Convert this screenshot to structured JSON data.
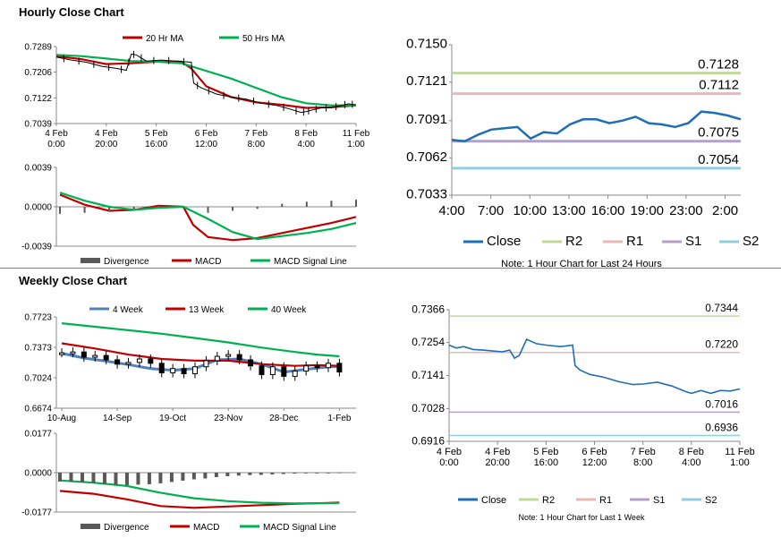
{
  "titles": {
    "hourly": "Hourly Close Chart",
    "weekly": "Weekly Close Chart"
  },
  "colors": {
    "close": "#1f6eb4",
    "r2": "#c4d79b",
    "r1": "#e6b9b8",
    "s1": "#b3a2c7",
    "s2": "#93cddd",
    "ma_short": "#c00000",
    "ma_long": "#00b050",
    "ma_4w": "#4f81bd",
    "divergence": "#595959",
    "price": "#000000",
    "axis": "#888888"
  },
  "chart_data": [
    {
      "id": "hourly-price-ma",
      "type": "line",
      "title": "",
      "legend": [
        "20 Hr MA",
        "50 Hrs MA"
      ],
      "legend_position": "top",
      "x_tick_labels": [
        [
          "4 Feb",
          "0:00"
        ],
        [
          "4 Feb",
          "20:00"
        ],
        [
          "5 Feb",
          "16:00"
        ],
        [
          "6 Feb",
          "12:00"
        ],
        [
          "7 Feb",
          "8:00"
        ],
        [
          "8 Feb",
          "4:00"
        ],
        [
          "11 Feb",
          "1:00"
        ]
      ],
      "y_tick_labels": [
        "0.7289",
        "0.7206",
        "0.7122",
        "0.7039"
      ],
      "ylim": [
        0.7039,
        0.7289
      ],
      "x_range": [
        0,
        6
      ],
      "close_x": [
        0,
        0.3,
        0.6,
        0.9,
        1.2,
        1.4,
        1.5,
        1.6,
        1.8,
        2.1,
        2.4,
        2.7,
        2.75,
        2.9,
        3.2,
        3.5,
        3.8,
        4.1,
        4.4,
        4.7,
        4.9,
        5.0,
        5.1,
        5.3,
        5.5,
        5.7,
        5.85,
        6.0
      ],
      "close_y": [
        0.7255,
        0.7245,
        0.7238,
        0.7225,
        0.7218,
        0.7212,
        0.7265,
        0.7262,
        0.7242,
        0.7245,
        0.7242,
        0.7238,
        0.717,
        0.7155,
        0.7135,
        0.7125,
        0.7118,
        0.7105,
        0.7098,
        0.7085,
        0.7075,
        0.7078,
        0.7082,
        0.709,
        0.709,
        0.7098,
        0.7103,
        0.71
      ],
      "series": [
        {
          "name": "20 Hr MA",
          "x": [
            0,
            0.5,
            1,
            1.5,
            2,
            2.5,
            2.7,
            3,
            3.5,
            4,
            4.5,
            5,
            5.5,
            6
          ],
          "values": [
            0.7258,
            0.7248,
            0.7232,
            0.7235,
            0.724,
            0.724,
            0.7218,
            0.716,
            0.7125,
            0.7108,
            0.71,
            0.709,
            0.7092,
            0.7098
          ]
        },
        {
          "name": "50 Hrs MA",
          "x": [
            0,
            0.5,
            1,
            1.5,
            2,
            2.5,
            3,
            3.5,
            4,
            4.5,
            5,
            5.5,
            6
          ],
          "values": [
            0.7262,
            0.7258,
            0.725,
            0.7242,
            0.724,
            0.7235,
            0.721,
            0.7185,
            0.7155,
            0.7125,
            0.7105,
            0.7098,
            0.7098
          ]
        }
      ]
    },
    {
      "id": "hourly-macd",
      "type": "line",
      "legend": [
        "Divergence",
        "MACD",
        "MACD Signal Line"
      ],
      "legend_position": "bottom",
      "y_tick_labels": [
        "0.0039",
        "0.0000",
        "-0.0039"
      ],
      "ylim": [
        -0.0039,
        0.0039
      ],
      "x_range": [
        0,
        6
      ],
      "series": [
        {
          "name": "MACD",
          "x": [
            0,
            0.5,
            1,
            1.5,
            2,
            2.5,
            2.7,
            3,
            3.5,
            4,
            4.5,
            5,
            5.5,
            6
          ],
          "values": [
            0.0012,
            0.0002,
            -0.0004,
            -0.0003,
            0.0001,
            0.0,
            -0.0018,
            -0.003,
            -0.0033,
            -0.0031,
            -0.0026,
            -0.0021,
            -0.0016,
            -0.001
          ]
        },
        {
          "name": "MACD Signal Line",
          "x": [
            0,
            0.5,
            1,
            1.5,
            2,
            2.5,
            3,
            3.5,
            4,
            4.5,
            5,
            5.5,
            6
          ],
          "values": [
            0.0014,
            0.0006,
            0.0,
            -0.0003,
            -0.0001,
            0.0,
            -0.0012,
            -0.0025,
            -0.0032,
            -0.0029,
            -0.0026,
            -0.0022,
            -0.0016
          ]
        },
        {
          "name": "Divergence",
          "x": [
            0,
            0.5,
            1,
            1.5,
            2,
            2.5,
            3,
            3.5,
            4,
            4.5,
            5,
            5.5,
            6
          ],
          "values": [
            -0.0007,
            -0.0006,
            -0.0005,
            -0.0002,
            0.0001,
            -0.0001,
            -0.0006,
            -0.0004,
            -0.0002,
            0.0003,
            0.0005,
            0.0006,
            0.0007
          ]
        }
      ]
    },
    {
      "id": "hourly-close-levels",
      "type": "line",
      "legend": [
        "Close",
        "R2",
        "R1",
        "S1",
        "S2"
      ],
      "legend_position": "bottom",
      "x_tick_labels": [
        "4:00",
        "7:00",
        "10:00",
        "13:00",
        "16:00",
        "19:00",
        "23:00",
        "2:00"
      ],
      "y_tick_labels": [
        "0.7150",
        "0.7121",
        "0.7091",
        "0.7062",
        "0.7033"
      ],
      "ylim": [
        0.7033,
        0.715
      ],
      "levels": [
        {
          "name": "R2",
          "value": 0.7128,
          "label": "0.7128"
        },
        {
          "name": "R1",
          "value": 0.7112,
          "label": "0.7112"
        },
        {
          "name": "S1",
          "value": 0.7075,
          "label": "0.7075"
        },
        {
          "name": "S2",
          "value": 0.7054,
          "label": "0.7054"
        }
      ],
      "close": [
        0.7076,
        0.7075,
        0.708,
        0.7084,
        0.7085,
        0.7086,
        0.7077,
        0.7082,
        0.7081,
        0.7088,
        0.7092,
        0.7092,
        0.7089,
        0.7091,
        0.7094,
        0.7089,
        0.7088,
        0.7086,
        0.7089,
        0.7098,
        0.7097,
        0.7095,
        0.7092
      ]
    },
    {
      "id": "weekly-price-ma",
      "type": "line",
      "legend": [
        "4 Week",
        "13 Week",
        "40 Week"
      ],
      "legend_position": "top",
      "x_tick_labels": [
        "10-Aug",
        "14-Sep",
        "19-Oct",
        "23-Nov",
        "28-Dec",
        "1-Feb"
      ],
      "y_tick_labels": [
        "0.7723",
        "0.7373",
        "0.7024",
        "0.6674"
      ],
      "ylim": [
        0.6674,
        0.7723
      ],
      "x_range": [
        0,
        26.5
      ],
      "close": [
        0.731,
        0.732,
        0.726,
        0.728,
        0.723,
        0.718,
        0.72,
        0.724,
        0.719,
        0.708,
        0.713,
        0.707,
        0.715,
        0.722,
        0.727,
        0.729,
        0.723,
        0.716,
        0.706,
        0.715,
        0.704,
        0.71,
        0.716,
        0.714,
        0.719,
        0.709
      ],
      "series": [
        {
          "name": "4 Week",
          "x": [
            0,
            2,
            4,
            6,
            8,
            10,
            12,
            14,
            16,
            18,
            20,
            22,
            24,
            25
          ],
          "values": [
            0.7305,
            0.725,
            0.7215,
            0.7175,
            0.713,
            0.711,
            0.713,
            0.723,
            0.724,
            0.718,
            0.709,
            0.712,
            0.715,
            0.7155
          ]
        },
        {
          "name": "13 Week",
          "x": [
            0,
            3,
            6,
            9,
            12,
            15,
            18,
            21,
            23,
            25
          ],
          "values": [
            0.742,
            0.736,
            0.729,
            0.724,
            0.722,
            0.722,
            0.718,
            0.716,
            0.717,
            0.716
          ]
        },
        {
          "name": "40 Week",
          "x": [
            0,
            3,
            6,
            9,
            12,
            15,
            18,
            21,
            23,
            25
          ],
          "values": [
            0.765,
            0.761,
            0.757,
            0.753,
            0.748,
            0.743,
            0.737,
            0.732,
            0.729,
            0.727
          ]
        }
      ]
    },
    {
      "id": "weekly-macd",
      "type": "line",
      "legend": [
        "Divergence",
        "MACD",
        "MACD Signal Line"
      ],
      "legend_position": "bottom",
      "y_tick_labels": [
        "0.0177",
        "0.0000",
        "-0.0177"
      ],
      "ylim": [
        -0.0177,
        0.0177
      ],
      "x_range": [
        0,
        26.5
      ],
      "series": [
        {
          "name": "MACD",
          "x": [
            0,
            3,
            6,
            9,
            12,
            15,
            18,
            21,
            24,
            25
          ],
          "values": [
            -0.0082,
            -0.0095,
            -0.012,
            -0.015,
            -0.0158,
            -0.0152,
            -0.0146,
            -0.014,
            -0.0136,
            -0.0134
          ]
        },
        {
          "name": "MACD Signal Line",
          "x": [
            0,
            3,
            6,
            9,
            12,
            15,
            18,
            21,
            24,
            25
          ],
          "values": [
            -0.0035,
            -0.0045,
            -0.006,
            -0.009,
            -0.0115,
            -0.0128,
            -0.0135,
            -0.0138,
            -0.0137,
            -0.0136
          ]
        },
        {
          "name": "Divergence",
          "x": [
            0,
            1,
            2,
            3,
            4,
            5,
            6,
            7,
            8,
            9,
            10,
            11,
            12,
            13,
            14,
            15,
            16,
            17,
            18,
            19,
            20,
            21,
            22,
            23,
            24,
            25
          ],
          "values": [
            -0.004,
            -0.0042,
            -0.0044,
            -0.0048,
            -0.0052,
            -0.0056,
            -0.0056,
            -0.0054,
            -0.0052,
            -0.0048,
            -0.0042,
            -0.0036,
            -0.003,
            -0.0026,
            -0.002,
            -0.0016,
            -0.0013,
            -0.0011,
            -0.001,
            -0.0008,
            -0.0006,
            -0.0004,
            -0.0003,
            -0.0002,
            -0.0001,
            0.0001
          ]
        }
      ]
    },
    {
      "id": "weekly-close-levels",
      "type": "line",
      "legend": [
        "Close",
        "R2",
        "R1",
        "S1",
        "S2"
      ],
      "legend_position": "bottom",
      "x_tick_labels": [
        [
          "4 Feb",
          "0:00"
        ],
        [
          "4 Feb",
          "20:00"
        ],
        [
          "5 Feb",
          "16:00"
        ],
        [
          "6 Feb",
          "12:00"
        ],
        [
          "7 Feb",
          "8:00"
        ],
        [
          "8 Feb",
          "4:00"
        ],
        [
          "11 Feb",
          "1:00"
        ]
      ],
      "y_tick_labels": [
        "0.7366",
        "0.7254",
        "0.7141",
        "0.7028",
        "0.6916"
      ],
      "ylim": [
        0.6916,
        0.7366
      ],
      "x_range": [
        0,
        6
      ],
      "levels": [
        {
          "name": "R2",
          "value": 0.7344,
          "label": "0.7344"
        },
        {
          "name": "R1",
          "value": 0.722,
          "label": "0.7220"
        },
        {
          "name": "S1",
          "value": 0.7016,
          "label": "0.7016"
        },
        {
          "name": "S2",
          "value": 0.6936,
          "label": "0.6936"
        }
      ],
      "close_x": [
        0,
        0.15,
        0.3,
        0.5,
        0.7,
        0.9,
        1.1,
        1.25,
        1.35,
        1.45,
        1.6,
        1.8,
        2.0,
        2.3,
        2.55,
        2.6,
        2.7,
        2.9,
        3.2,
        3.5,
        3.8,
        4.0,
        4.3,
        4.6,
        4.9,
        5.0,
        5.2,
        5.4,
        5.6,
        5.8,
        6.0
      ],
      "close_y": [
        0.7245,
        0.7235,
        0.724,
        0.723,
        0.7228,
        0.7225,
        0.7222,
        0.7228,
        0.72,
        0.721,
        0.7265,
        0.725,
        0.7245,
        0.724,
        0.7245,
        0.7175,
        0.716,
        0.7145,
        0.7135,
        0.712,
        0.711,
        0.7112,
        0.7118,
        0.7105,
        0.7085,
        0.708,
        0.709,
        0.708,
        0.709,
        0.7088,
        0.7095
      ]
    }
  ],
  "notes": {
    "hourly": "Note: 1 Hour Chart for Last 24 Hours",
    "weekly": "Note: 1 Hour Chart for Last 1 Week"
  }
}
